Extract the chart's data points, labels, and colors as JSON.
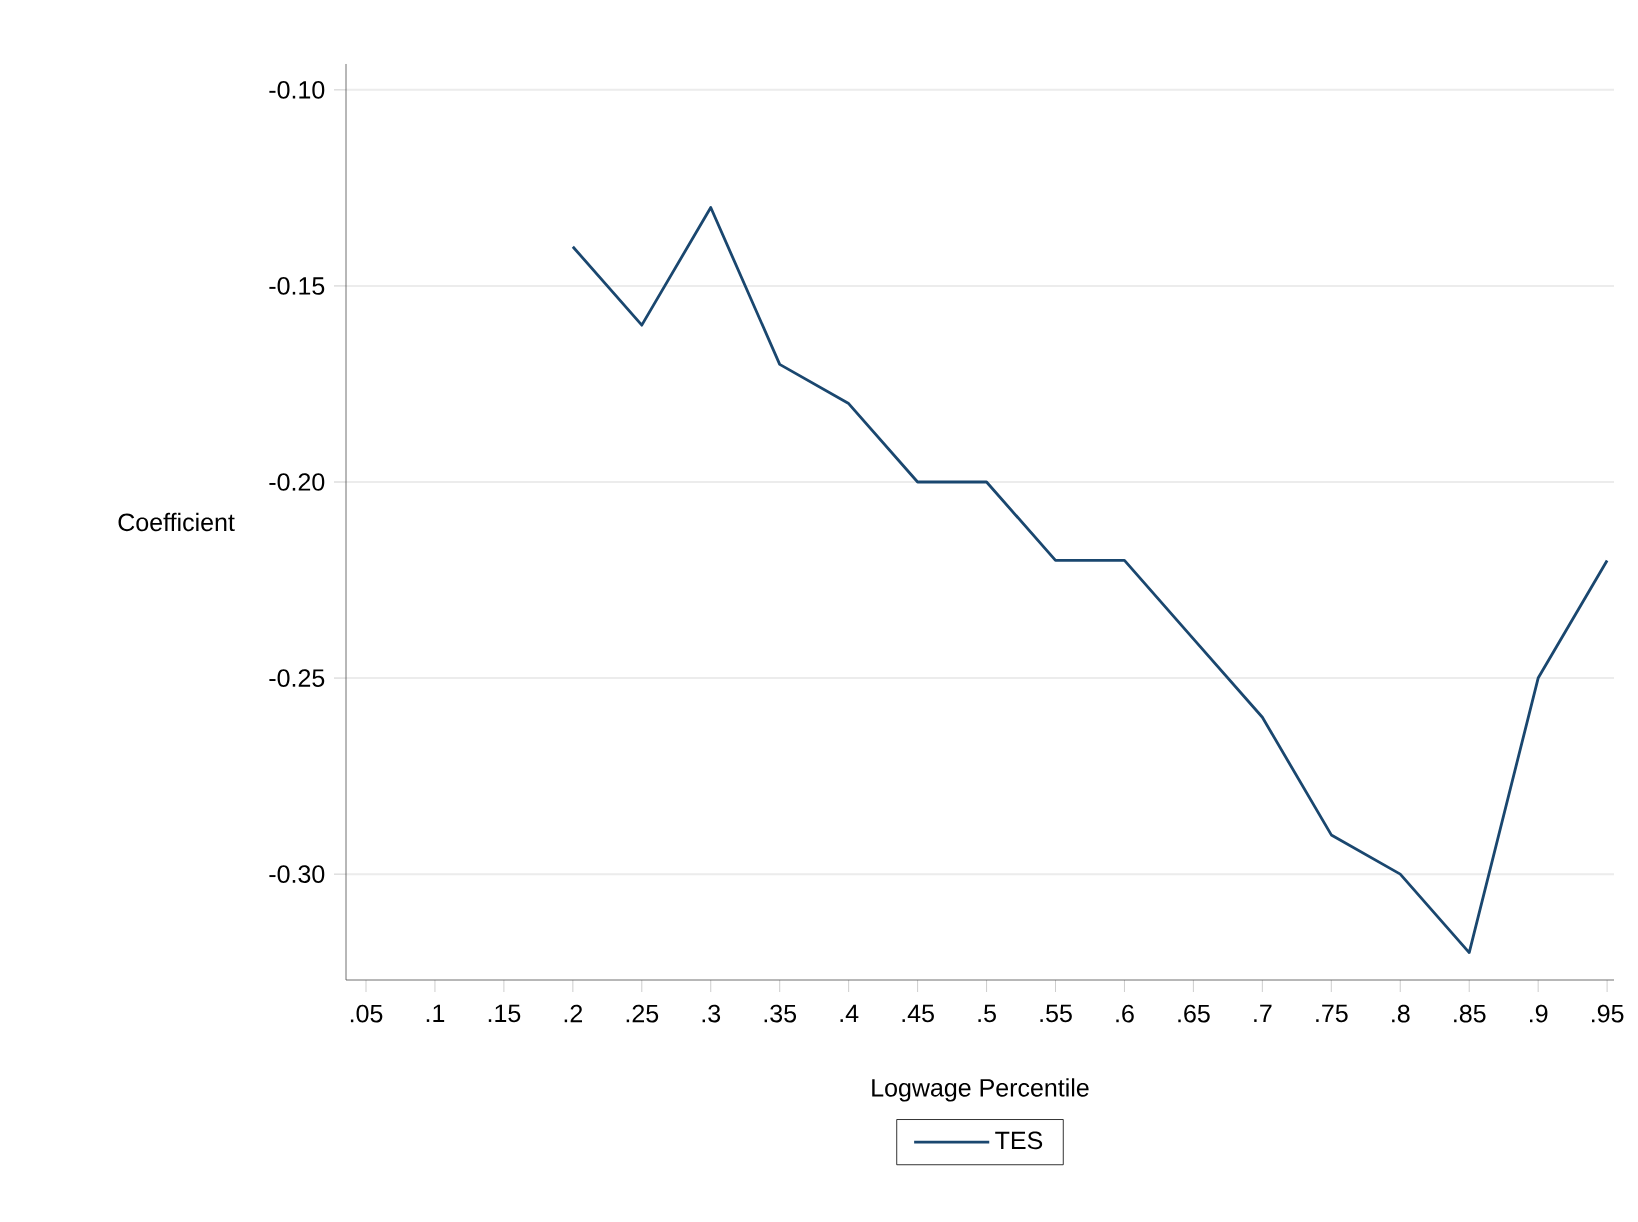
{
  "chart_data": {
    "type": "line",
    "xlabel": "Logwage Percentile",
    "ylabel": "Coefficient",
    "series": [
      {
        "name": "TES",
        "color": "#1a476f",
        "x": [
          0.2,
          0.25,
          0.3,
          0.35,
          0.4,
          0.45,
          0.5,
          0.55,
          0.6,
          0.65,
          0.7,
          0.75,
          0.8,
          0.85,
          0.9,
          0.95
        ],
        "values": [
          -0.14,
          -0.16,
          -0.13,
          -0.17,
          -0.18,
          -0.2,
          -0.2,
          -0.22,
          -0.22,
          -0.24,
          -0.26,
          -0.29,
          -0.3,
          -0.32,
          -0.25,
          -0.22
        ]
      }
    ],
    "xlim": [
      0.0355,
      0.955
    ],
    "ylim": [
      -0.327,
      -0.0934
    ],
    "xticks": [
      {
        "value": 0.05,
        "label": ".05"
      },
      {
        "value": 0.1,
        "label": ".1"
      },
      {
        "value": 0.15,
        "label": ".15"
      },
      {
        "value": 0.2,
        "label": ".2"
      },
      {
        "value": 0.25,
        "label": ".25"
      },
      {
        "value": 0.3,
        "label": ".3"
      },
      {
        "value": 0.35,
        "label": ".35"
      },
      {
        "value": 0.4,
        "label": ".4"
      },
      {
        "value": 0.45,
        "label": ".45"
      },
      {
        "value": 0.5,
        "label": ".5"
      },
      {
        "value": 0.55,
        "label": ".55"
      },
      {
        "value": 0.6,
        "label": ".6"
      },
      {
        "value": 0.65,
        "label": ".65"
      },
      {
        "value": 0.7,
        "label": ".7"
      },
      {
        "value": 0.75,
        "label": ".75"
      },
      {
        "value": 0.8,
        "label": ".8"
      },
      {
        "value": 0.85,
        "label": ".85"
      },
      {
        "value": 0.9,
        "label": ".9"
      },
      {
        "value": 0.95,
        "label": ".95"
      }
    ],
    "yticks": [
      {
        "value": -0.1,
        "label": "-0.10"
      },
      {
        "value": -0.15,
        "label": "-0.15"
      },
      {
        "value": -0.2,
        "label": "-0.20"
      },
      {
        "value": -0.25,
        "label": "-0.25"
      },
      {
        "value": -0.3,
        "label": "-0.30"
      }
    ],
    "grid": "y",
    "legend": "bottom",
    "marker": "none",
    "line_style": "solid"
  }
}
